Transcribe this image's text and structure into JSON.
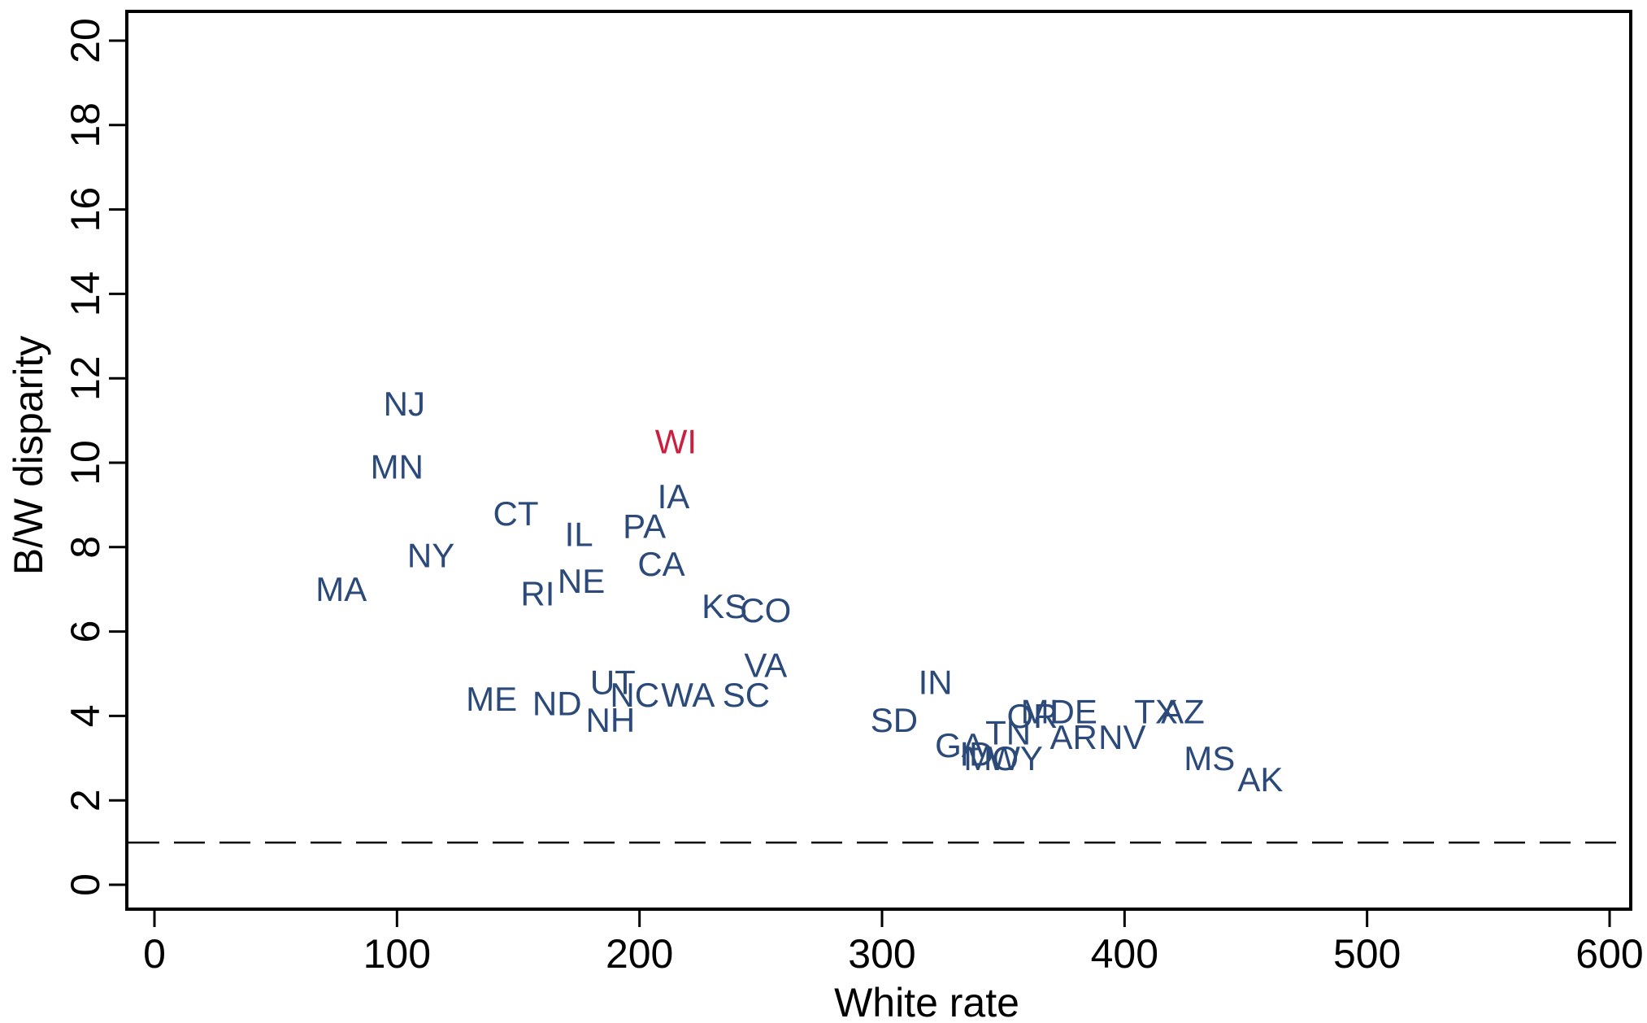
{
  "chart_data": {
    "type": "scatter",
    "xlabel": "White rate",
    "ylabel": "B/W disparity",
    "xlim": [
      0,
      600
    ],
    "ylim": [
      0,
      20
    ],
    "x_ticks": [
      0,
      100,
      200,
      300,
      400,
      500,
      600
    ],
    "y_ticks": [
      0,
      2,
      4,
      6,
      8,
      10,
      12,
      14,
      16,
      18,
      20
    ],
    "reference_line": {
      "y": 1,
      "style": "dashed"
    },
    "highlight": {
      "label": "WI",
      "color": "#cc1f3f"
    },
    "point_color": "#2b4a7a",
    "grid": false,
    "legend": "none",
    "points": [
      {
        "label": "NJ",
        "x": 103,
        "y": 11.4
      },
      {
        "label": "MN",
        "x": 100,
        "y": 9.9
      },
      {
        "label": "WI",
        "x": 215,
        "y": 10.5
      },
      {
        "label": "IA",
        "x": 214,
        "y": 9.2
      },
      {
        "label": "CT",
        "x": 149,
        "y": 8.8
      },
      {
        "label": "IL",
        "x": 175,
        "y": 8.3
      },
      {
        "label": "PA",
        "x": 202,
        "y": 8.5
      },
      {
        "label": "NY",
        "x": 114,
        "y": 7.8
      },
      {
        "label": "CA",
        "x": 209,
        "y": 7.6
      },
      {
        "label": "MA",
        "x": 77,
        "y": 7.0
      },
      {
        "label": "NE",
        "x": 176,
        "y": 7.2
      },
      {
        "label": "RI",
        "x": 158,
        "y": 6.9
      },
      {
        "label": "KS",
        "x": 235,
        "y": 6.6
      },
      {
        "label": "CO",
        "x": 252,
        "y": 6.5
      },
      {
        "label": "VA",
        "x": 252,
        "y": 5.2
      },
      {
        "label": "ME",
        "x": 139,
        "y": 4.4
      },
      {
        "label": "ND",
        "x": 166,
        "y": 4.3
      },
      {
        "label": "UT",
        "x": 189,
        "y": 4.8
      },
      {
        "label": "NC",
        "x": 198,
        "y": 4.5
      },
      {
        "label": "WA",
        "x": 220,
        "y": 4.5
      },
      {
        "label": "SC",
        "x": 244,
        "y": 4.5
      },
      {
        "label": "NH",
        "x": 188,
        "y": 3.9
      },
      {
        "label": "IN",
        "x": 322,
        "y": 4.8
      },
      {
        "label": "SD",
        "x": 305,
        "y": 3.9
      },
      {
        "label": "OR",
        "x": 362,
        "y": 4.0
      },
      {
        "label": "MI",
        "x": 365,
        "y": 4.1
      },
      {
        "label": "DE",
        "x": 379,
        "y": 4.1
      },
      {
        "label": "TN",
        "x": 352,
        "y": 3.6
      },
      {
        "label": "AR",
        "x": 379,
        "y": 3.5
      },
      {
        "label": "NV",
        "x": 399,
        "y": 3.5
      },
      {
        "label": "TX",
        "x": 413,
        "y": 4.1
      },
      {
        "label": "AZ",
        "x": 424,
        "y": 4.1
      },
      {
        "label": "GA",
        "x": 332,
        "y": 3.3
      },
      {
        "label": "ID",
        "x": 339,
        "y": 3.1
      },
      {
        "label": "MO",
        "x": 345,
        "y": 3.0
      },
      {
        "label": "WY",
        "x": 355,
        "y": 3.0
      },
      {
        "label": "MS",
        "x": 435,
        "y": 3.0
      },
      {
        "label": "AK",
        "x": 456,
        "y": 2.5
      }
    ]
  }
}
